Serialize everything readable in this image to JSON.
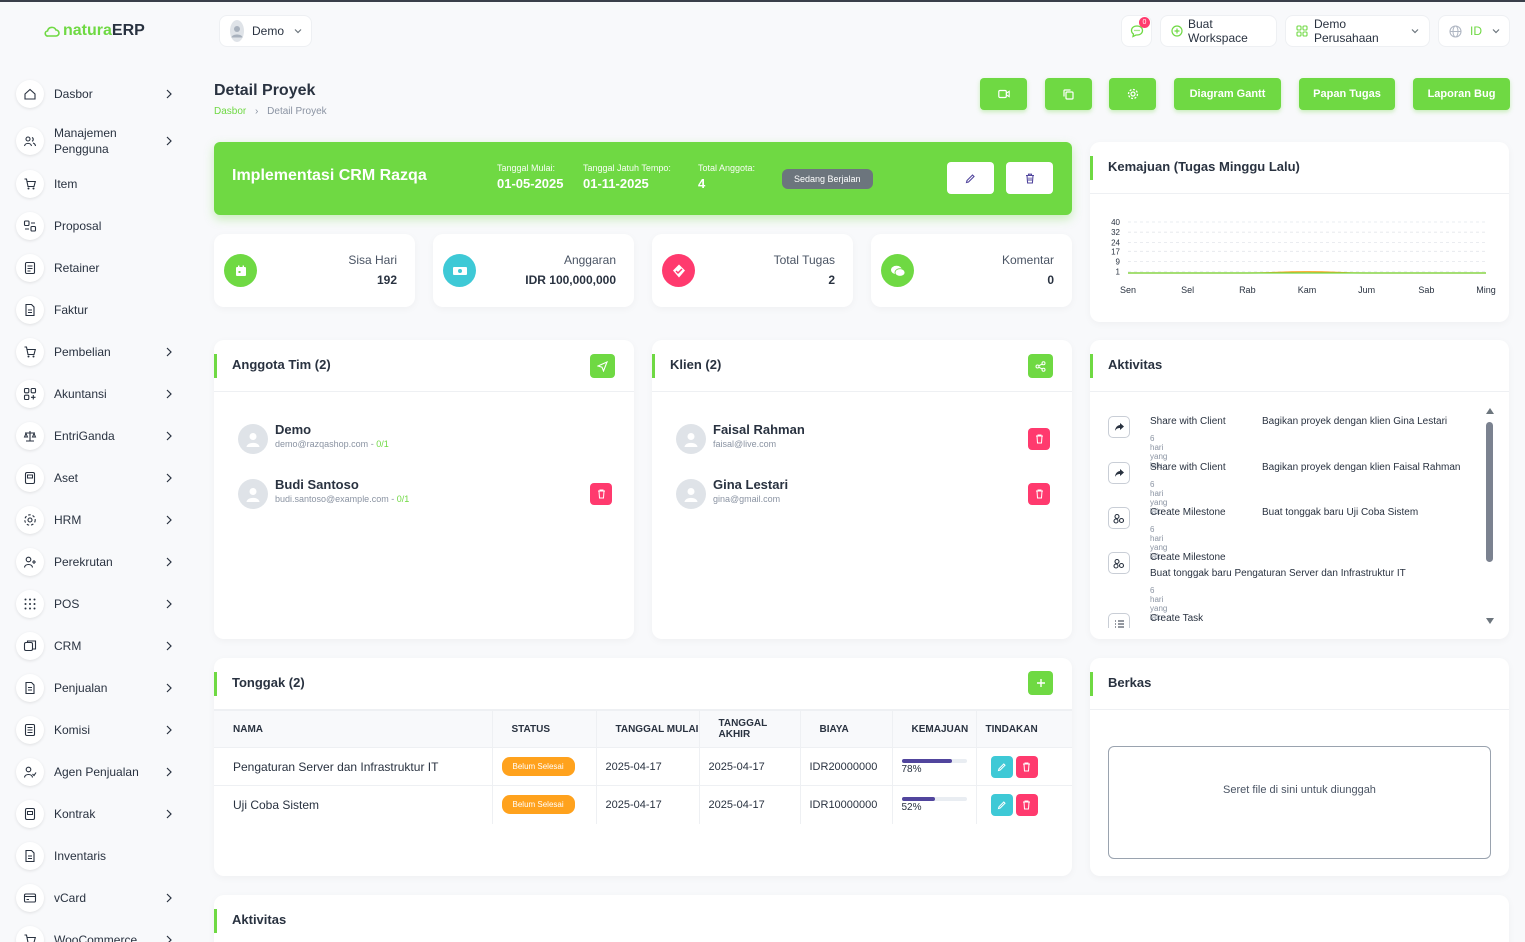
{
  "brand": {
    "part1": "natura",
    "part2": "ERP"
  },
  "header": {
    "user": "Demo",
    "notification_count": "0",
    "create_workspace": "Buat Workspace",
    "company": "Demo Perusahaan",
    "language": "ID"
  },
  "sidebar": {
    "items": [
      {
        "label": "Dasbor",
        "icon": "home-icon"
      },
      {
        "label": "Manajemen Pengguna",
        "icon": "users-icon"
      },
      {
        "label": "Item",
        "icon": "cart-icon"
      },
      {
        "label": "Proposal",
        "icon": "proposal-icon"
      },
      {
        "label": "Retainer",
        "icon": "retainer-icon"
      },
      {
        "label": "Faktur",
        "icon": "invoice-icon"
      },
      {
        "label": "Pembelian",
        "icon": "cart-icon"
      },
      {
        "label": "Akuntansi",
        "icon": "grid-icon"
      },
      {
        "label": "EntriGanda",
        "icon": "scale-icon"
      },
      {
        "label": "Aset",
        "icon": "asset-icon"
      },
      {
        "label": "HRM",
        "icon": "hrm-icon"
      },
      {
        "label": "Perekrutan",
        "icon": "user-plus-icon"
      },
      {
        "label": "POS",
        "icon": "pos-grid-icon"
      },
      {
        "label": "CRM",
        "icon": "crm-icon"
      },
      {
        "label": "Penjualan",
        "icon": "sales-icon"
      },
      {
        "label": "Komisi",
        "icon": "commission-icon"
      },
      {
        "label": "Agen Penjualan",
        "icon": "agent-icon"
      },
      {
        "label": "Kontrak",
        "icon": "contract-icon"
      },
      {
        "label": "Inventaris",
        "icon": "inventory-icon"
      },
      {
        "label": "vCard",
        "icon": "card-icon"
      },
      {
        "label": "WooCommerce",
        "icon": "cart-icon"
      }
    ]
  },
  "page": {
    "title": "Detail Proyek",
    "breadcrumb": [
      "Dasbor",
      "Detail Proyek"
    ]
  },
  "actions": {
    "gantt": "Diagram Gantt",
    "task_board": "Papan Tugas",
    "bug_report": "Laporan Bug"
  },
  "project": {
    "name": "Implementasi CRM Razqa",
    "start_label": "Tanggal Mulai:",
    "start": "01-05-2025",
    "due_label": "Tanggal Jatuh Tempo:",
    "due": "01-11-2025",
    "members_label": "Total Anggota:",
    "members": "4",
    "status": "Sedang Berjalan"
  },
  "stats": [
    {
      "label": "Sisa Hari",
      "value": "192",
      "color": "#6fd943"
    },
    {
      "label": "Anggaran",
      "value": "IDR 100,000,000",
      "color": "#3ec9d6"
    },
    {
      "label": "Total Tugas",
      "value": "2",
      "color": "#ff3a6e"
    },
    {
      "label": "Komentar",
      "value": "0",
      "color": "#6fd943"
    }
  ],
  "progress_chart": {
    "title": "Kemajuan (Tugas Minggu Lalu)"
  },
  "chart_data": {
    "type": "line",
    "title": "Kemajuan (Tugas Minggu Lalu)",
    "categories": [
      "Sen",
      "Sel",
      "Rab",
      "Kam",
      "Jum",
      "Sab",
      "Ming"
    ],
    "yticks": [
      "40",
      "32",
      "24",
      "17",
      "9",
      "1"
    ],
    "series": [
      {
        "values": [
          0,
          0,
          0,
          1,
          0,
          0,
          0
        ],
        "color": "#ffa21d"
      },
      {
        "values": [
          0,
          0,
          0,
          0,
          0,
          0,
          0
        ],
        "color": "#6fd943"
      }
    ],
    "ylim": [
      0,
      40
    ],
    "grid": true
  },
  "team": {
    "title": "Anggota Tim (2)",
    "members": [
      {
        "name": "Demo",
        "email": "demo@razqashop.com",
        "progress": "0/1"
      },
      {
        "name": "Budi Santoso",
        "email": "budi.santoso@example.com",
        "progress": "0/1"
      }
    ]
  },
  "clients": {
    "title": "Klien (2)",
    "items": [
      {
        "name": "Faisal Rahman",
        "email": "faisal@live.com"
      },
      {
        "name": "Gina Lestari",
        "email": "gina@gmail.com"
      }
    ]
  },
  "activity": {
    "title": "Aktivitas",
    "items": [
      {
        "type": "Share with Client",
        "desc": "Bagikan proyek dengan klien Gina Lestari",
        "time": "6 hari yang lalu",
        "icon": "share-icon"
      },
      {
        "type": "Share with Client",
        "desc": "Bagikan proyek dengan klien Faisal Rahman",
        "time": "6 hari yang lalu",
        "icon": "share-icon"
      },
      {
        "type": "Create Milestone",
        "desc": "Buat tonggak baru Uji Coba Sistem",
        "time": "6 hari yang lalu",
        "icon": "milestone-icon"
      },
      {
        "type": "Create Milestone",
        "desc": "Buat tonggak baru Pengaturan Server dan Infrastruktur IT",
        "time": "6 hari yang lalu",
        "icon": "milestone-icon"
      },
      {
        "type": "Create Task",
        "desc": "",
        "time": "",
        "icon": "task-list-icon"
      }
    ]
  },
  "milestones": {
    "title": "Tonggak (2)",
    "columns": [
      "NAMA",
      "STATUS",
      "TANGGAL MULAI",
      "TANGGAL AKHIR",
      "BIAYA",
      "KEMAJUAN",
      "TINDAKAN"
    ],
    "rows": [
      {
        "name": "Pengaturan Server dan Infrastruktur IT",
        "status": "Belum Selesai",
        "start": "2025-04-17",
        "end": "2025-04-17",
        "cost": "IDR20000000",
        "progress": "78%",
        "progress_value": 78
      },
      {
        "name": "Uji Coba Sistem",
        "status": "Belum Selesai",
        "start": "2025-04-17",
        "end": "2025-04-17",
        "cost": "IDR10000000",
        "progress": "52%",
        "progress_value": 52
      }
    ]
  },
  "files": {
    "title": "Berkas",
    "dropzone": "Seret file di sini untuk diunggah"
  },
  "bottom_activity": {
    "title": "Aktivitas"
  }
}
